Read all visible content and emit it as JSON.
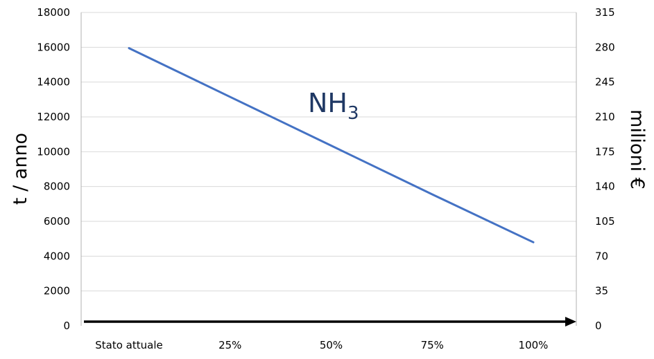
{
  "chart_data": {
    "type": "line",
    "categories": [
      "Stato attuale",
      "25%",
      "50%",
      "75%",
      "100%"
    ],
    "series": [
      {
        "values": [
          15950,
          13150,
          10350,
          7550,
          4800
        ],
        "color": "#4472c4"
      }
    ],
    "ylabel": "t / anno",
    "y2label": "milioni €",
    "ylim": [
      0,
      18000
    ],
    "y2lim": [
      0,
      315
    ],
    "yticks": [
      "0",
      "2000",
      "4000",
      "6000",
      "8000",
      "10000",
      "12000",
      "14000",
      "16000",
      "18000"
    ],
    "y2ticks": [
      "0",
      "35",
      "70",
      "105",
      "140",
      "175",
      "210",
      "245",
      "280",
      "315"
    ],
    "annotation": {
      "text": "NH",
      "subscript": "3",
      "color": "#1f3864"
    },
    "grid": true,
    "gridColor": "#d9d9d9",
    "axisColor": "#000000"
  }
}
